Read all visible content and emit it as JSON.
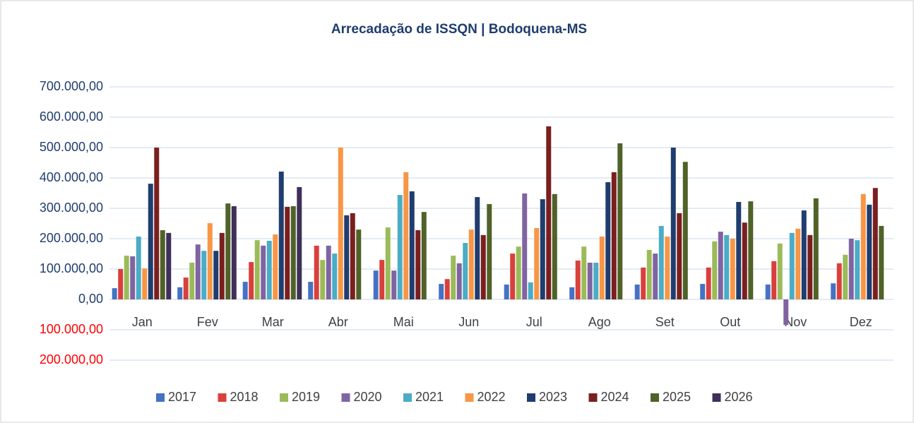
{
  "chart_data": {
    "type": "bar",
    "title": "Arrecadação de ISSQN | Bodoquena-MS",
    "categories": [
      "Jan",
      "Fev",
      "Mar",
      "Abr",
      "Mai",
      "Jun",
      "Jul",
      "Ago",
      "Set",
      "Out",
      "Nov",
      "Dez"
    ],
    "series": [
      {
        "name": "2017",
        "color": "#4472c4",
        "values": [
          37000,
          40000,
          58000,
          58000,
          95000,
          51000,
          49000,
          40000,
          49000,
          51000,
          49000,
          53000
        ]
      },
      {
        "name": "2018",
        "color": "#d9403c",
        "values": [
          100000,
          72000,
          123000,
          177000,
          130000,
          67000,
          151000,
          128000,
          105000,
          105000,
          126000,
          119000
        ]
      },
      {
        "name": "2019",
        "color": "#9bbb59",
        "values": [
          144000,
          121000,
          195000,
          130000,
          237000,
          144000,
          174000,
          174000,
          163000,
          191000,
          184000,
          147000
        ]
      },
      {
        "name": "2020",
        "color": "#8064a2",
        "values": [
          142000,
          181000,
          177000,
          177000,
          95000,
          119000,
          349000,
          121000,
          151000,
          223000,
          -84000,
          200000
        ]
      },
      {
        "name": "2021",
        "color": "#4bacc6",
        "values": [
          207000,
          160000,
          193000,
          151000,
          344000,
          186000,
          56000,
          121000,
          242000,
          212000,
          219000,
          195000
        ]
      },
      {
        "name": "2022",
        "color": "#f79646",
        "values": [
          102000,
          251000,
          214000,
          500000,
          419000,
          230000,
          235000,
          207000,
          207000,
          200000,
          233000,
          347000
        ]
      },
      {
        "name": "2023",
        "color": "#1f3d6e",
        "values": [
          381000,
          160000,
          421000,
          277000,
          356000,
          337000,
          330000,
          386000,
          500000,
          321000,
          293000,
          312000
        ]
      },
      {
        "name": "2024",
        "color": "#7a1f1f",
        "values": [
          500000,
          219000,
          305000,
          284000,
          228000,
          212000,
          570000,
          419000,
          284000,
          253000,
          212000,
          367000
        ]
      },
      {
        "name": "2025",
        "color": "#4f6228",
        "values": [
          228000,
          316000,
          307000,
          230000,
          288000,
          314000,
          347000,
          514000,
          453000,
          323000,
          333000,
          242000
        ]
      },
      {
        "name": "2026",
        "color": "#3f2f5a",
        "values": [
          219000,
          307000,
          370000,
          null,
          null,
          null,
          null,
          null,
          null,
          null,
          null,
          null
        ]
      }
    ],
    "ylim": [
      -200000,
      700000
    ],
    "yticks": [
      {
        "value": -200000,
        "label": "200.000,00"
      },
      {
        "value": -100000,
        "label": "100.000,00"
      },
      {
        "value": 0,
        "label": "0,00"
      },
      {
        "value": 100000,
        "label": "100.000,00"
      },
      {
        "value": 200000,
        "label": "200.000,00"
      },
      {
        "value": 300000,
        "label": "300.000,00"
      },
      {
        "value": 400000,
        "label": "400.000,00"
      },
      {
        "value": 500000,
        "label": "500.000,00"
      },
      {
        "value": 600000,
        "label": "600.000,00"
      },
      {
        "value": 700000,
        "label": "700.000,00"
      }
    ],
    "grid": true,
    "tick_color": "#1f3d6e",
    "negative_tick_color": "#ff0000",
    "legend": "bottom"
  }
}
